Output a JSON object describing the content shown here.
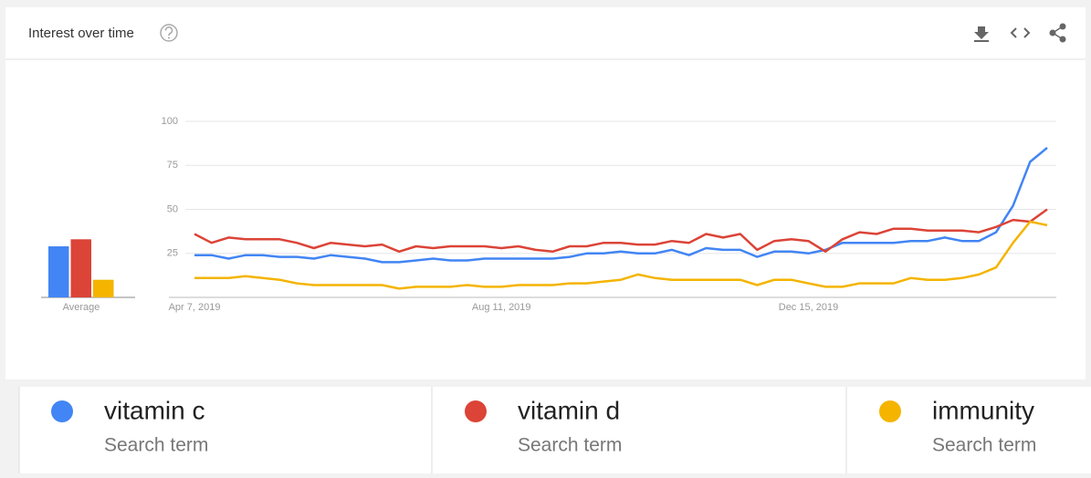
{
  "chart_data": [
    {
      "type": "line",
      "title": "Interest over time",
      "categories": [
        "Apr 7, 2019",
        null,
        null,
        null,
        null,
        null,
        null,
        null,
        null,
        null,
        null,
        null,
        null,
        null,
        null,
        null,
        null,
        null,
        "Aug 11, 2019",
        null,
        null,
        null,
        null,
        null,
        null,
        null,
        null,
        null,
        null,
        null,
        null,
        null,
        null,
        null,
        null,
        null,
        "Dec 15, 2019",
        null,
        null,
        null,
        null,
        null,
        null,
        null,
        null,
        null,
        null,
        null,
        null,
        null,
        null
      ],
      "series": [
        {
          "name": "vitamin c",
          "color": "#4285f4",
          "values": [
            24,
            24,
            22,
            24,
            24,
            23,
            23,
            22,
            24,
            23,
            22,
            20,
            20,
            21,
            22,
            21,
            21,
            22,
            22,
            22,
            22,
            22,
            23,
            25,
            25,
            26,
            25,
            25,
            27,
            24,
            28,
            27,
            27,
            23,
            26,
            26,
            25,
            27,
            31,
            31,
            31,
            31,
            32,
            32,
            34,
            32,
            32,
            37,
            52,
            77,
            85
          ]
        },
        {
          "name": "vitamin d",
          "color": "#db4437",
          "values": [
            36,
            31,
            34,
            33,
            33,
            33,
            31,
            28,
            31,
            30,
            29,
            30,
            26,
            29,
            28,
            29,
            29,
            29,
            28,
            29,
            27,
            26,
            29,
            29,
            31,
            31,
            30,
            30,
            32,
            31,
            36,
            34,
            36,
            27,
            32,
            33,
            32,
            26,
            33,
            37,
            36,
            39,
            39,
            38,
            38,
            38,
            37,
            40,
            44,
            43,
            50
          ]
        },
        {
          "name": "immunity",
          "color": "#f4b400",
          "values": [
            11,
            11,
            11,
            12,
            11,
            10,
            8,
            7,
            7,
            7,
            7,
            7,
            5,
            6,
            6,
            6,
            7,
            6,
            6,
            7,
            7,
            7,
            8,
            8,
            9,
            10,
            13,
            11,
            10,
            10,
            10,
            10,
            10,
            7,
            10,
            10,
            8,
            6,
            6,
            8,
            8,
            8,
            11,
            10,
            10,
            11,
            13,
            17,
            31,
            43,
            41
          ]
        }
      ],
      "ylim": [
        0,
        100
      ],
      "yticks": [
        25,
        50,
        75,
        100
      ],
      "grid": true
    },
    {
      "type": "bar",
      "categories": [
        "Average"
      ],
      "series": [
        {
          "name": "vitamin c",
          "color": "#4285f4",
          "values": [
            29
          ]
        },
        {
          "name": "vitamin d",
          "color": "#db4437",
          "values": [
            33
          ]
        },
        {
          "name": "immunity",
          "color": "#f4b400",
          "values": [
            10
          ]
        }
      ],
      "ylim": [
        0,
        100
      ]
    }
  ],
  "legend_items": [
    {
      "kind": "Search term"
    },
    {
      "kind": "Search term"
    },
    {
      "kind": "Search term"
    }
  ]
}
